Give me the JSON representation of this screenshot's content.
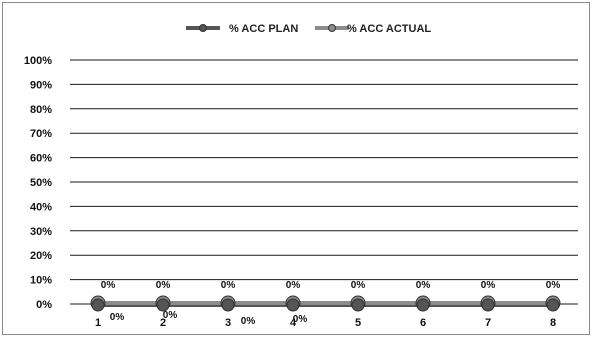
{
  "chart_data": {
    "type": "line",
    "categories": [
      "1",
      "2",
      "3",
      "4",
      "5",
      "6",
      "7",
      "8"
    ],
    "series": [
      {
        "name": "% ACC PLAN",
        "values": [
          0,
          0,
          0,
          0,
          0,
          0,
          0,
          0
        ],
        "labels": [
          "0%",
          "0%",
          "0%",
          "0%",
          "0%",
          "0%",
          "0%",
          "0%"
        ],
        "color": "#555555"
      },
      {
        "name": "% ACC ACTUAL",
        "values": [
          0,
          0,
          0,
          0,
          0,
          0,
          0,
          0
        ],
        "labels": [
          "0%",
          "0%",
          "0%",
          "0%",
          "0%",
          "0%",
          "0%",
          "0%"
        ],
        "color": "#8c8c8c"
      }
    ],
    "yticks": [
      "0%",
      "10%",
      "20%",
      "30%",
      "40%",
      "50%",
      "60%",
      "70%",
      "80%",
      "90%",
      "100%"
    ],
    "ylim": [
      0,
      1
    ],
    "grid": true,
    "legend_position": "top-center",
    "title": "",
    "xlabel": "",
    "ylabel": ""
  }
}
